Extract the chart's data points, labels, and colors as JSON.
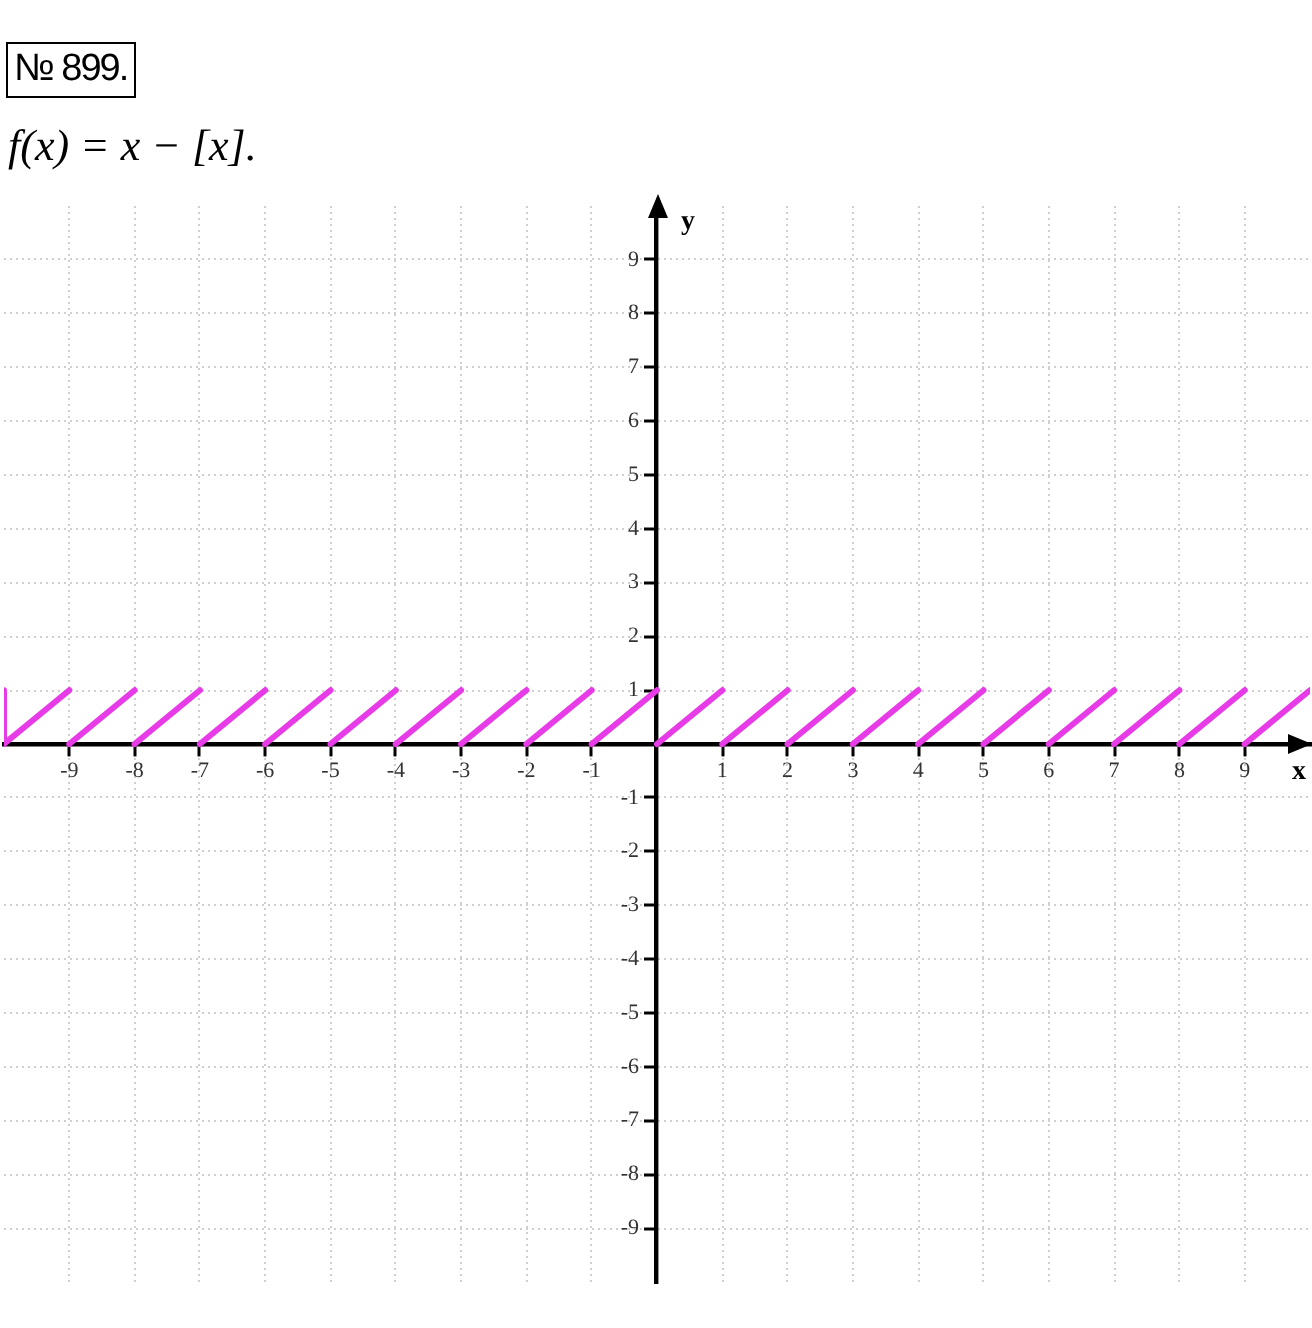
{
  "chart_data": {
    "type": "line",
    "title": "f(x) = x − [x].",
    "xlabel": "x",
    "ylabel": "y",
    "annotations": [
      "№ 899."
    ],
    "series": [
      {
        "color": "#e83be8",
        "x": [
          -10,
          -10,
          -9,
          null,
          -9,
          -8,
          null,
          -8,
          -7,
          null,
          -7,
          -6,
          null,
          -6,
          -5,
          null,
          -5,
          -4,
          null,
          -4,
          -3,
          null,
          -3,
          -2,
          null,
          -2,
          -1,
          null,
          -1,
          0,
          null,
          0,
          1,
          null,
          1,
          2,
          null,
          2,
          3,
          null,
          3,
          4,
          null,
          4,
          5,
          null,
          5,
          6,
          null,
          6,
          7,
          null,
          7,
          8,
          null,
          8,
          9,
          null,
          9,
          10
        ],
        "values": [
          1,
          0,
          1,
          null,
          0,
          1,
          null,
          0,
          1,
          null,
          0,
          1,
          null,
          0,
          1,
          null,
          0,
          1,
          null,
          0,
          1,
          null,
          0,
          1,
          null,
          0,
          1,
          null,
          0,
          1,
          null,
          0,
          1,
          null,
          0,
          1,
          null,
          0,
          1,
          null,
          0,
          1,
          null,
          0,
          1,
          null,
          0,
          1,
          null,
          0,
          1,
          null,
          0,
          1,
          null,
          0,
          1,
          null,
          0,
          1
        ]
      }
    ],
    "xlim": [
      -10,
      10
    ],
    "ylim": [
      -10,
      10
    ],
    "xticks": [
      -9,
      -8,
      -7,
      -6,
      -5,
      -4,
      -3,
      -2,
      -1,
      1,
      2,
      3,
      4,
      5,
      6,
      7,
      8,
      9
    ],
    "yticks": [
      -9,
      -8,
      -7,
      -6,
      -5,
      -4,
      -3,
      -2,
      -1,
      1,
      2,
      3,
      4,
      5,
      6,
      7,
      8,
      9
    ],
    "grid": true,
    "line_style": "solid"
  }
}
